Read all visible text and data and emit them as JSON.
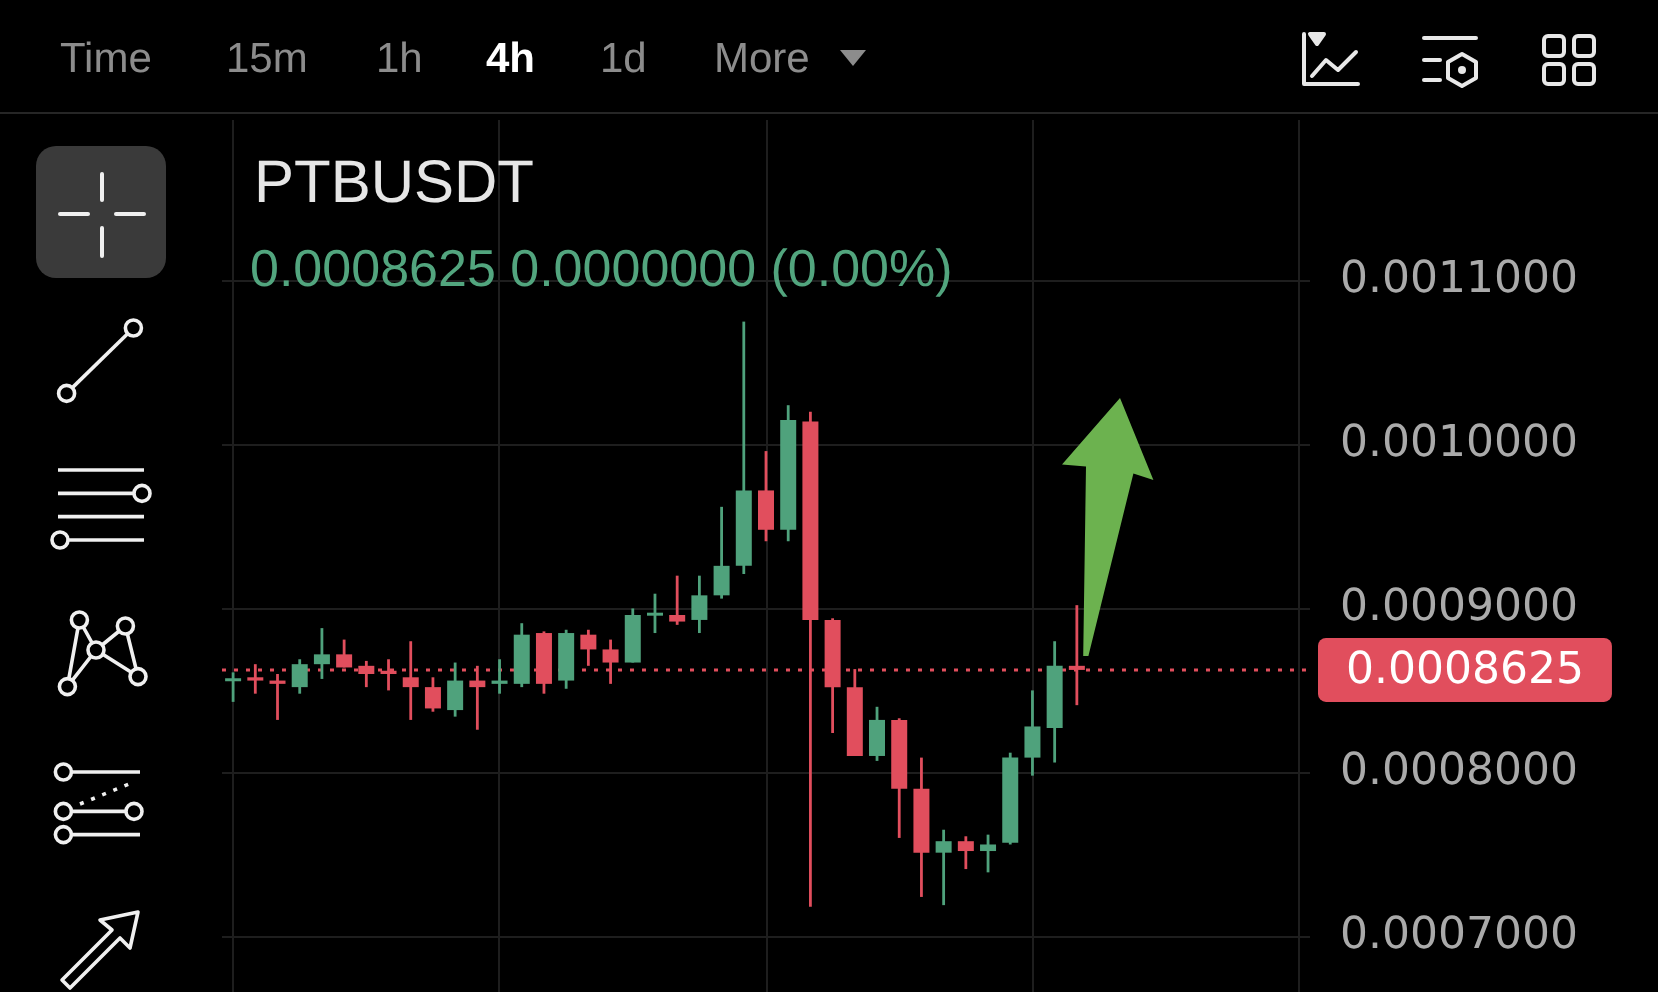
{
  "chart_data": {
    "type": "candlestick",
    "title": "PTBUSDT",
    "subtitle": "0.0008625 0.0000000 (0.00%)",
    "annotations": [
      "Time",
      "15m",
      "1h",
      "4h",
      "1d",
      "More"
    ],
    "categories": [
      null,
      null,
      null,
      null,
      null,
      null,
      null,
      null,
      null,
      null,
      null,
      null,
      null,
      null,
      null,
      null,
      null,
      null,
      null,
      null,
      null,
      null,
      null,
      null,
      null,
      null,
      null,
      null,
      null,
      null,
      null,
      null,
      null,
      null,
      null,
      null,
      null,
      null,
      null,
      null,
      null,
      null,
      null,
      null,
      null,
      null,
      null,
      null,
      null
    ],
    "ohlc": [
      [
        0.000856,
        0.000861,
        0.000843,
        0.000857
      ],
      [
        0.000858,
        0.000866,
        0.000848,
        0.000856
      ],
      [
        0.000856,
        0.00086,
        0.000832,
        0.000854
      ],
      [
        0.000852,
        0.000869,
        0.000848,
        0.000866
      ],
      [
        0.000866,
        0.000888,
        0.000857,
        0.000872
      ],
      [
        0.000872,
        0.000881,
        0.000864,
        0.000864
      ],
      [
        0.000865,
        0.000868,
        0.000852,
        0.00086
      ],
      [
        0.000862,
        0.000869,
        0.00085,
        0.00086
      ],
      [
        0.000858,
        0.00088,
        0.000832,
        0.000852
      ],
      [
        0.000852,
        0.000858,
        0.000837,
        0.000839
      ],
      [
        0.000838,
        0.000867,
        0.000834,
        0.000856
      ],
      [
        0.000856,
        0.000865,
        0.000826,
        0.000852
      ],
      [
        0.000854,
        0.000869,
        0.000848,
        0.000856
      ],
      [
        0.000854,
        0.000891,
        0.000852,
        0.000884
      ],
      [
        0.000885,
        0.000886,
        0.000848,
        0.000854
      ],
      [
        0.000856,
        0.000887,
        0.000851,
        0.000885
      ],
      [
        0.000884,
        0.000887,
        0.000865,
        0.000875
      ],
      [
        0.000875,
        0.000881,
        0.000854,
        0.000867
      ],
      [
        0.000867,
        0.0009,
        0.000867,
        0.000896
      ],
      [
        0.000896,
        0.000909,
        0.000885,
        0.000897
      ],
      [
        0.000896,
        0.00092,
        0.00089,
        0.000892
      ],
      [
        0.000893,
        0.00092,
        0.000885,
        0.000908
      ],
      [
        0.000908,
        0.000962,
        0.000906,
        0.000926
      ],
      [
        0.000926,
        0.001075,
        0.000921,
        0.000972
      ],
      [
        0.000972,
        0.000996,
        0.000941,
        0.000948
      ],
      [
        0.000948,
        0.001024,
        0.000941,
        0.001015
      ],
      [
        0.001014,
        0.00102,
        0.000718,
        0.000893
      ],
      [
        0.000893,
        0.000894,
        0.000824,
        0.000852
      ],
      [
        0.000852,
        0.000863,
        0.00081,
        0.00081
      ],
      [
        0.00081,
        0.00084,
        0.000807,
        0.000832
      ],
      [
        0.000832,
        0.000833,
        0.00076,
        0.00079
      ],
      [
        0.00079,
        0.000809,
        0.000724,
        0.000751
      ],
      [
        0.000751,
        0.000765,
        0.000719,
        0.000758
      ],
      [
        0.000758,
        0.000761,
        0.000741,
        0.000752
      ],
      [
        0.000752,
        0.000762,
        0.000739,
        0.000756
      ],
      [
        0.000757,
        0.000812,
        0.000756,
        0.000809
      ],
      [
        0.000809,
        0.00085,
        0.000798,
        0.000828
      ],
      [
        0.000827,
        0.00088,
        0.000806,
        0.000865
      ],
      [
        0.000865,
        0.000902,
        0.000841,
        0.0008625
      ],
      null,
      null,
      null,
      null,
      null,
      null,
      null,
      null,
      null,
      null
    ],
    "colors": [
      "#4fa27c",
      "#e14e5d",
      "#e14e5d",
      "#4fa27c",
      "#4fa27c",
      "#e14e5d",
      "#e14e5d",
      "#e14e5d",
      "#e14e5d",
      "#e14e5d",
      "#4fa27c",
      "#e14e5d",
      "#4fa27c",
      "#4fa27c",
      "#e14e5d",
      "#4fa27c",
      "#e14e5d",
      "#e14e5d",
      "#4fa27c",
      "#4fa27c",
      "#e14e5d",
      "#4fa27c",
      "#4fa27c",
      "#4fa27c",
      "#e14e5d",
      "#4fa27c",
      "#e14e5d",
      "#e14e5d",
      "#e14e5d",
      "#4fa27c",
      "#e14e5d",
      "#e14e5d",
      "#4fa27c",
      "#e14e5d",
      "#4fa27c",
      "#4fa27c",
      "#4fa27c",
      "#4fa27c",
      "#e14e5d",
      null,
      null,
      null,
      null,
      null,
      null,
      null,
      null,
      null,
      null
    ],
    "ylim": [
      0.000666,
      0.001198
    ],
    "yticks": [
      {
        "value": 0.0007,
        "label": "0.0007000"
      },
      {
        "value": 0.0008,
        "label": "0.0008000"
      },
      {
        "value": 0.0009,
        "label": "0.0009000"
      },
      {
        "value": 0.001,
        "label": "0.0010000"
      },
      {
        "value": 0.0011,
        "label": "0.0011000"
      }
    ],
    "ref_lines": [
      {
        "axis": "y",
        "value": 0.0008625,
        "label": "0.0008625",
        "color": "#e14e5d",
        "line_style": "dotted"
      }
    ],
    "grid": true,
    "legend": false,
    "tick_labels": "y"
  }
}
